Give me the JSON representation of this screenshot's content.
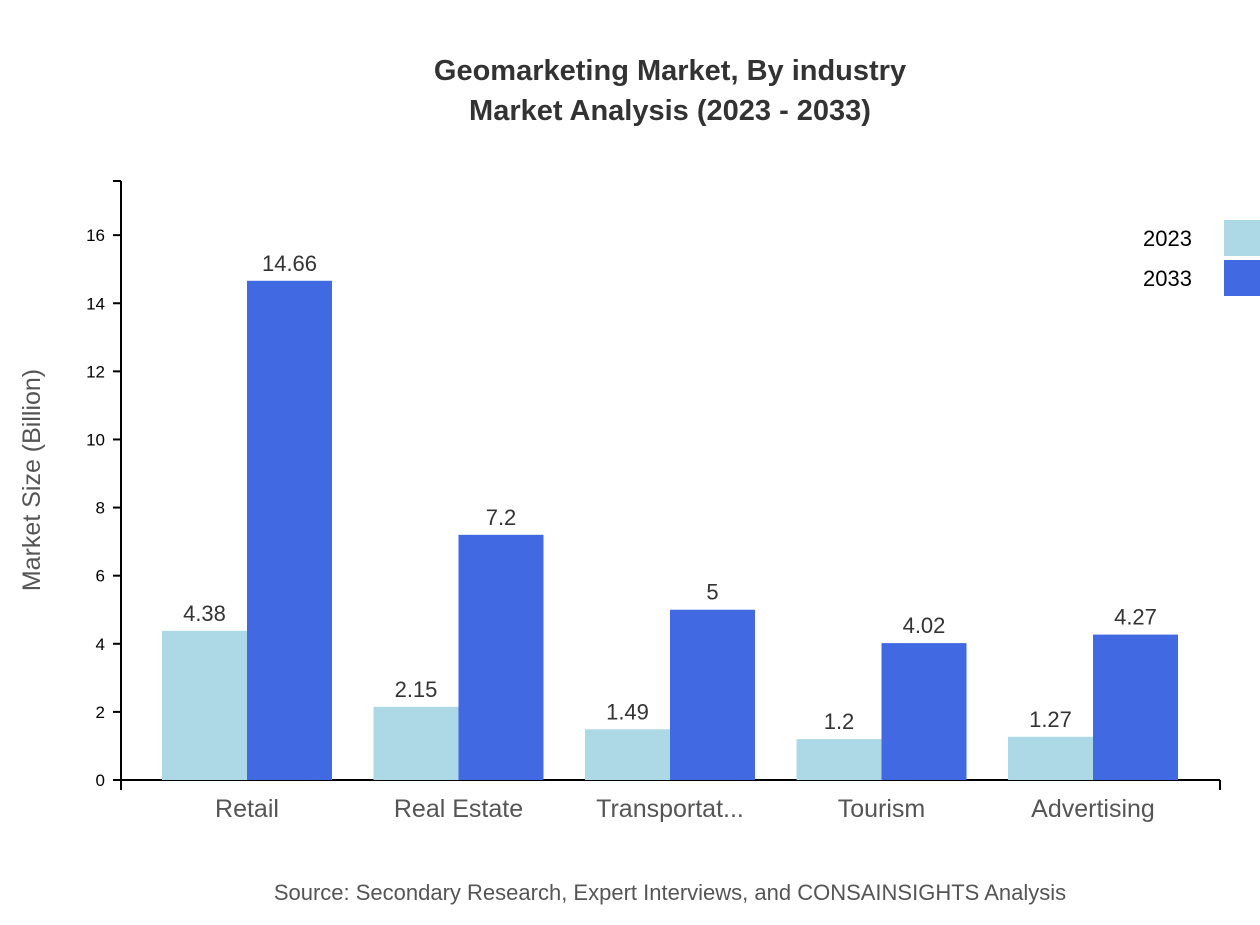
{
  "chart_data": {
    "type": "bar",
    "title": "Geomarketing Market, By industry",
    "subtitle": "Market Analysis (2023 - 2033)",
    "xlabel": "",
    "ylabel": "Market Size (Billion)",
    "categories": [
      "Retail",
      "Real Estate",
      "Transportat...",
      "Tourism",
      "Advertising"
    ],
    "series": [
      {
        "name": "2023",
        "color": "#ADD8E6",
        "values": [
          4.38,
          2.15,
          1.49,
          1.2,
          1.27
        ]
      },
      {
        "name": "2033",
        "color": "#4169E1",
        "values": [
          14.66,
          7.2,
          5,
          4.02,
          4.27
        ]
      }
    ],
    "ylim": [
      0,
      17.59
    ],
    "yticks": [
      0,
      2,
      4,
      6,
      8,
      10,
      12,
      14,
      16
    ],
    "grid": false,
    "legend": "top-right",
    "source": "Source: Secondary Research, Expert Interviews, and CONSAINSIGHTS Analysis"
  }
}
